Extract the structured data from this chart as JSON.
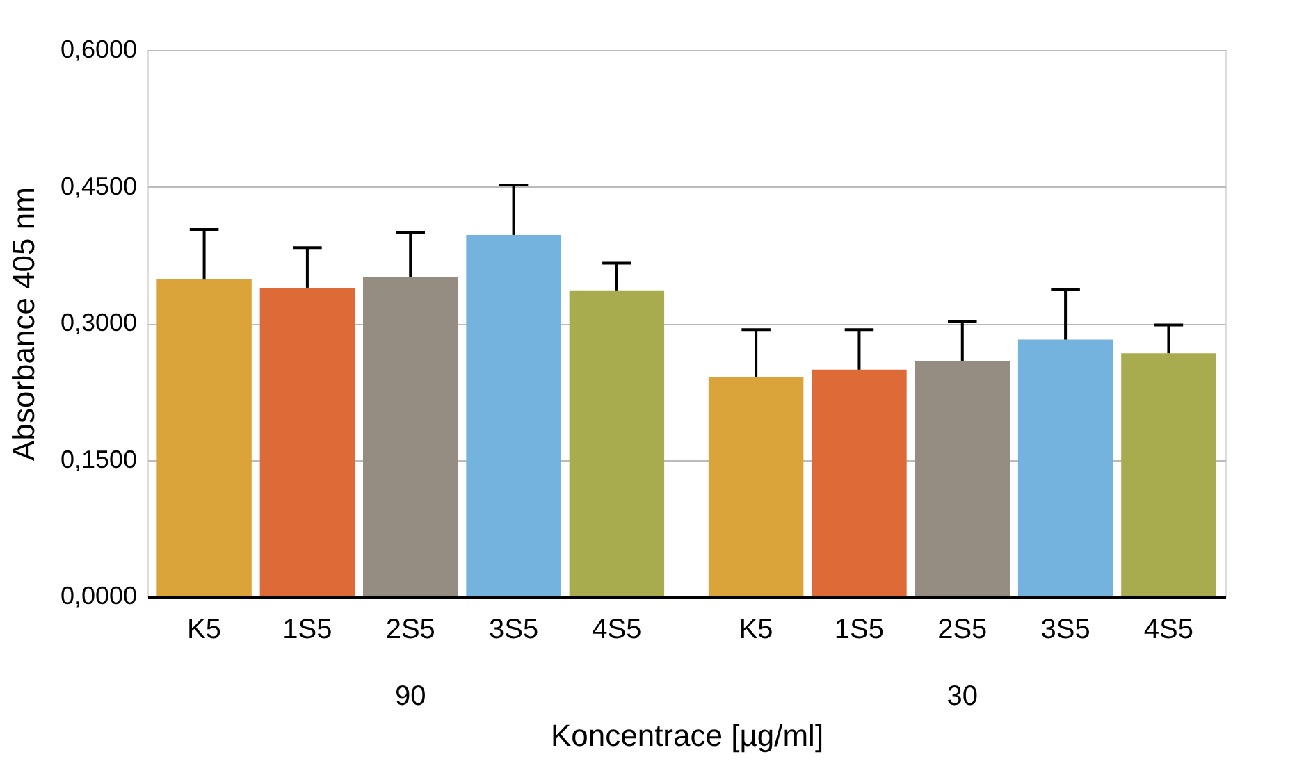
{
  "chart_data": {
    "type": "bar",
    "xlabel": "Koncentrace [µg/ml]",
    "ylabel": "Absorbance 405 nm",
    "categories": [
      "K5",
      "1S5",
      "2S5",
      "3S5",
      "4S5",
      "K5",
      "1S5",
      "2S5",
      "3S5",
      "4S5"
    ],
    "values": [
      0.348,
      0.339,
      0.351,
      0.397,
      0.336,
      0.241,
      0.249,
      0.258,
      0.282,
      0.267
    ],
    "errors": [
      [
        0.348,
        0.403
      ],
      [
        0.339,
        0.383
      ],
      [
        0.351,
        0.4
      ],
      [
        0.397,
        0.452
      ],
      [
        0.336,
        0.366
      ],
      [
        0.241,
        0.293
      ],
      [
        0.249,
        0.293
      ],
      [
        0.258,
        0.302
      ],
      [
        0.282,
        0.337
      ],
      [
        0.267,
        0.298
      ]
    ],
    "colors": [
      "#dba43a",
      "#de6b37",
      "#958c82",
      "#75b3df",
      "#a9ac4e",
      "#dba43a",
      "#de6b37",
      "#958c82",
      "#75b3df",
      "#a9ac4e"
    ],
    "annotations": [
      "90",
      "30"
    ],
    "ylim": [
      0,
      0.6
    ],
    "yticks": [
      {
        "value": 0,
        "label": "0,0000"
      },
      {
        "value": 0.15,
        "label": "0,1500"
      },
      {
        "value": 0.3,
        "label": "0,3000"
      },
      {
        "value": 0.45,
        "label": "0,4500"
      },
      {
        "value": 0.6,
        "label": "0,6000"
      }
    ],
    "grid": "y"
  }
}
